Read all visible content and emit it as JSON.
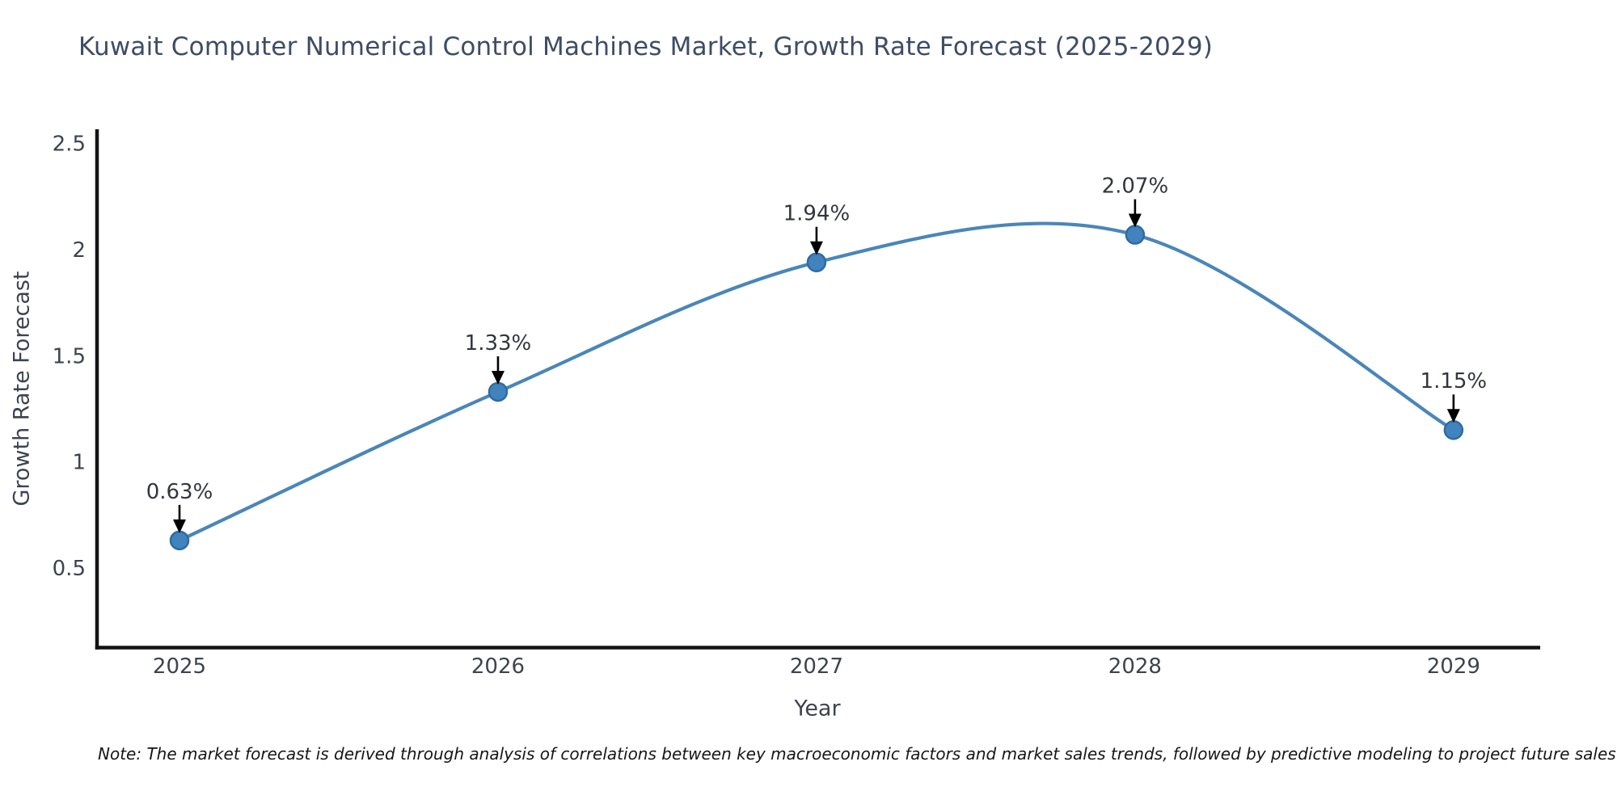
{
  "page": {
    "note": "Note: The market forecast is derived through analysis of correlations between key macroeconomic factors and market sales trends, followed by predictive modeling to project future sales"
  },
  "chart_data": {
    "type": "line",
    "title": "Kuwait Computer Numerical Control Machines Market, Growth Rate Forecast (2025-2029)",
    "xlabel": "Year",
    "ylabel": "Growth Rate Forecast",
    "x": [
      2025,
      2026,
      2027,
      2028,
      2029
    ],
    "series": [
      {
        "name": "Growth Rate Forecast",
        "values": [
          0.63,
          1.33,
          1.94,
          2.07,
          1.15
        ],
        "point_labels": [
          "0.63%",
          "1.33%",
          "1.94%",
          "2.07%",
          "1.15%"
        ]
      }
    ],
    "yticks": [
      0.5,
      1,
      1.5,
      2,
      2.5
    ],
    "ylim": [
      0.125,
      2.567
    ],
    "xlim": [
      2024.736,
      2029.272
    ],
    "grid": false,
    "legend": "none",
    "annotation_style": "value label with black down-arrow above each marker",
    "curve": "smooth spline through points",
    "colors": {
      "line": "#4a86b8",
      "marker_fill": "#4184bd",
      "marker_edge": "#2f6ba3",
      "arrow": "#000000",
      "spine": "#131313",
      "tick_text": "#3d4350",
      "annotation_text": "#33363e",
      "title_text": "#3e4c66",
      "note_text": "#161616"
    }
  }
}
